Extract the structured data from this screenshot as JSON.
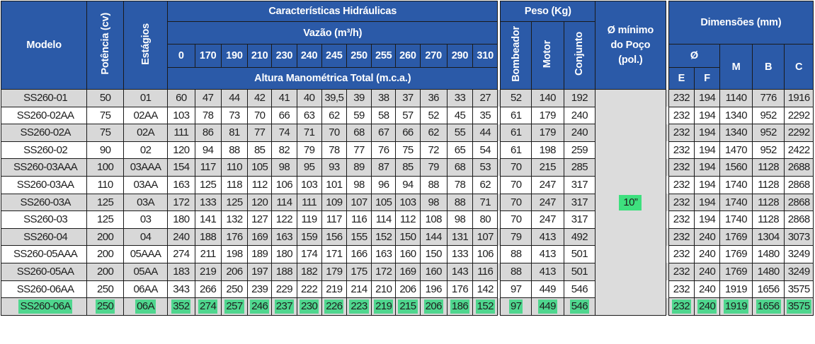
{
  "headers": {
    "model": "Modelo",
    "power": "Potência (cv)",
    "stages": "Estágios",
    "hydraulic": "Características Hidráulicas",
    "flow": "Vazão (m³/h)",
    "head": "Altura Manométrica Total (m.c.a.)",
    "weight": "Peso (Kg)",
    "weight_cols": [
      "Bombeador",
      "Motor",
      "Conjunto"
    ],
    "well": "Ø mínimo do Poço (pol.)",
    "dimensions": "Dimensões (mm)",
    "diam": "Ø",
    "dim_cols": [
      "E",
      "F",
      "M",
      "B",
      "C"
    ]
  },
  "flows": [
    "0",
    "170",
    "190",
    "210",
    "230",
    "240",
    "245",
    "250",
    "255",
    "260",
    "270",
    "290",
    "310"
  ],
  "well_value": "10”",
  "rows": [
    {
      "model": "SS260-01",
      "power": "50",
      "stages": "01",
      "head": [
        "60",
        "47",
        "44",
        "42",
        "41",
        "40",
        "39,5",
        "39",
        "38",
        "37",
        "36",
        "33",
        "27"
      ],
      "weight": [
        "52",
        "140",
        "192"
      ],
      "dims": [
        "232",
        "194",
        "1140",
        "776",
        "1916"
      ]
    },
    {
      "model": "SS260-02AA",
      "power": "75",
      "stages": "02AA",
      "head": [
        "103",
        "78",
        "73",
        "70",
        "66",
        "63",
        "62",
        "59",
        "58",
        "57",
        "52",
        "45",
        "35"
      ],
      "weight": [
        "61",
        "179",
        "240"
      ],
      "dims": [
        "232",
        "194",
        "1340",
        "952",
        "2292"
      ]
    },
    {
      "model": "SS260-02A",
      "power": "75",
      "stages": "02A",
      "head": [
        "111",
        "86",
        "81",
        "77",
        "74",
        "71",
        "70",
        "68",
        "67",
        "66",
        "62",
        "55",
        "44"
      ],
      "weight": [
        "61",
        "179",
        "240"
      ],
      "dims": [
        "232",
        "194",
        "1340",
        "952",
        "2292"
      ]
    },
    {
      "model": "SS260-02",
      "power": "90",
      "stages": "02",
      "head": [
        "120",
        "94",
        "88",
        "85",
        "82",
        "79",
        "78",
        "77",
        "76",
        "75",
        "72",
        "65",
        "54"
      ],
      "weight": [
        "61",
        "198",
        "259"
      ],
      "dims": [
        "232",
        "194",
        "1470",
        "952",
        "2422"
      ]
    },
    {
      "model": "SS260-03AAA",
      "power": "100",
      "stages": "03AAA",
      "head": [
        "154",
        "117",
        "110",
        "105",
        "98",
        "95",
        "93",
        "89",
        "87",
        "85",
        "79",
        "68",
        "53"
      ],
      "weight": [
        "70",
        "215",
        "285"
      ],
      "dims": [
        "232",
        "194",
        "1560",
        "1128",
        "2688"
      ]
    },
    {
      "model": "SS260-03AA",
      "power": "110",
      "stages": "03AA",
      "head": [
        "163",
        "125",
        "118",
        "112",
        "106",
        "103",
        "101",
        "98",
        "96",
        "94",
        "88",
        "78",
        "62"
      ],
      "weight": [
        "70",
        "247",
        "317"
      ],
      "dims": [
        "232",
        "194",
        "1740",
        "1128",
        "2868"
      ]
    },
    {
      "model": "SS260-03A",
      "power": "125",
      "stages": "03A",
      "head": [
        "172",
        "133",
        "125",
        "120",
        "114",
        "111",
        "109",
        "107",
        "105",
        "103",
        "98",
        "88",
        "71"
      ],
      "weight": [
        "70",
        "247",
        "317"
      ],
      "dims": [
        "232",
        "194",
        "1740",
        "1128",
        "2868"
      ]
    },
    {
      "model": "SS260-03",
      "power": "125",
      "stages": "03",
      "head": [
        "180",
        "141",
        "132",
        "127",
        "122",
        "119",
        "117",
        "116",
        "114",
        "112",
        "108",
        "98",
        "80"
      ],
      "weight": [
        "70",
        "247",
        "317"
      ],
      "dims": [
        "232",
        "194",
        "1740",
        "1128",
        "2868"
      ]
    },
    {
      "model": "SS260-04",
      "power": "200",
      "stages": "04",
      "head": [
        "240",
        "188",
        "176",
        "169",
        "163",
        "159",
        "156",
        "155",
        "152",
        "150",
        "144",
        "131",
        "107"
      ],
      "weight": [
        "79",
        "413",
        "492"
      ],
      "dims": [
        "232",
        "240",
        "1769",
        "1304",
        "3073"
      ]
    },
    {
      "model": "SS260-05AAA",
      "power": "200",
      "stages": "05AAA",
      "head": [
        "274",
        "211",
        "198",
        "189",
        "180",
        "174",
        "171",
        "166",
        "163",
        "160",
        "150",
        "133",
        "106"
      ],
      "weight": [
        "88",
        "413",
        "501"
      ],
      "dims": [
        "232",
        "240",
        "1769",
        "1480",
        "3249"
      ]
    },
    {
      "model": "SS260-05AA",
      "power": "200",
      "stages": "05AA",
      "head": [
        "183",
        "219",
        "206",
        "197",
        "188",
        "182",
        "179",
        "175",
        "172",
        "169",
        "160",
        "143",
        "116"
      ],
      "weight": [
        "88",
        "413",
        "501"
      ],
      "dims": [
        "232",
        "240",
        "1769",
        "1480",
        "3249"
      ]
    },
    {
      "model": "SS260-06AA",
      "power": "250",
      "stages": "06AA",
      "head": [
        "343",
        "266",
        "250",
        "239",
        "229",
        "222",
        "219",
        "214",
        "210",
        "206",
        "196",
        "176",
        "142"
      ],
      "weight": [
        "97",
        "449",
        "546"
      ],
      "dims": [
        "232",
        "240",
        "1919",
        "1656",
        "3575"
      ]
    },
    {
      "model": "SS260-06A",
      "power": "250",
      "stages": "06A",
      "head": [
        "352",
        "274",
        "257",
        "246",
        "237",
        "230",
        "226",
        "223",
        "219",
        "215",
        "206",
        "186",
        "152"
      ],
      "weight": [
        "97",
        "449",
        "546"
      ],
      "dims": [
        "232",
        "240",
        "1919",
        "1656",
        "3575"
      ],
      "highlight": true
    }
  ]
}
